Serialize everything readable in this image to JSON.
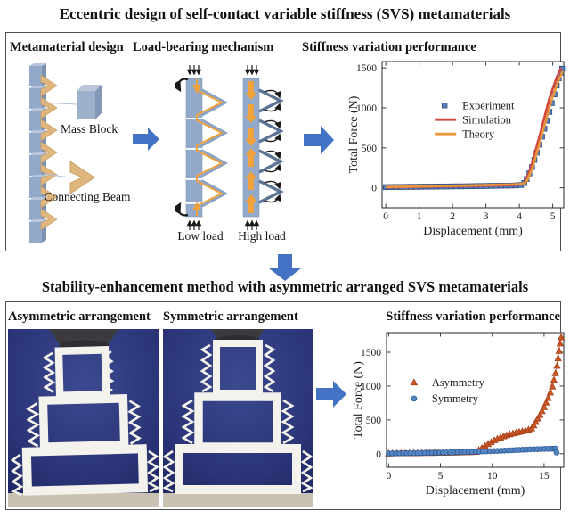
{
  "top": {
    "title": "Eccentric design of self-contact variable stiffness (SVS) metamaterials",
    "design": {
      "header": "Metamaterial design",
      "mass_block": "Mass Block",
      "connecting_beam": "Connecting Beam"
    },
    "mechanism": {
      "header": "Load-bearing mechanism",
      "low": "Low load",
      "high": "High load"
    },
    "performance": {
      "header": "Stiffness variation performance"
    }
  },
  "bottom": {
    "title": "Stability-enhancement method with asymmetric arranged SVS metamaterials",
    "asym_header": "Asymmetric arrangement",
    "sym_header": "Symmetric arrangement",
    "performance_header": "Stiffness variation performance"
  },
  "colors": {
    "flow_arrow_blue": "#4472c4",
    "block_blue": "#92a9c9",
    "beam_tan": "#dfb77e",
    "mechanism_orange": "#f0a23c",
    "experiment_blue": "#5b7fc0",
    "simulation_red": "#d4473c",
    "theory_orange": "#e9963b",
    "asymmetry_orange": "#cc5527",
    "symmetry_blue": "#5585c5",
    "photo_background_navy": "#2b3578"
  },
  "chart_data": [
    {
      "type": "scatter",
      "title": "",
      "xlabel": "Displacement (mm)",
      "ylabel": "Total Force (N)",
      "xlim": [
        -0.11,
        5.33
      ],
      "ylim": [
        -250,
        1580
      ],
      "xticks": [
        0,
        1,
        2,
        3,
        4,
        5
      ],
      "yticks": [
        0,
        500,
        1000,
        1500
      ],
      "grid": false,
      "legend": {
        "fx": 0.29,
        "fy": 0.3,
        "rh": 16
      },
      "series": [
        {
          "name": "Experiment",
          "marker": "square",
          "color": "#5b7fc0",
          "edge": "#2c4a7c",
          "x": [
            0,
            0.15,
            0.3,
            0.45,
            0.6,
            0.75,
            0.9,
            1.05,
            1.2,
            1.35,
            1.5,
            1.65,
            1.8,
            1.95,
            2.1,
            2.25,
            2.4,
            2.55,
            2.7,
            2.85,
            3.0,
            3.15,
            3.3,
            3.45,
            3.6,
            3.75,
            3.9,
            4.05,
            4.15,
            4.22,
            4.3,
            4.38,
            4.45,
            4.52,
            4.6,
            4.68,
            4.75,
            4.82,
            4.9,
            4.97,
            5.05,
            5.12,
            5.18,
            5.24,
            5.28
          ],
          "y": [
            8,
            9,
            10,
            10,
            11,
            12,
            12,
            13,
            14,
            14,
            15,
            16,
            16,
            17,
            18,
            18,
            19,
            20,
            21,
            22,
            23,
            24,
            25,
            26,
            27,
            28,
            30,
            35,
            60,
            110,
            180,
            260,
            350,
            440,
            540,
            640,
            740,
            840,
            950,
            1060,
            1170,
            1280,
            1370,
            1440,
            1490
          ]
        },
        {
          "name": "Simulation",
          "line": true,
          "width": 2.6,
          "color": "#d4473c",
          "x": [
            0,
            0.5,
            1,
            1.5,
            2,
            2.5,
            3,
            3.5,
            3.9,
            4.1,
            4.2,
            4.35,
            4.6,
            4.9,
            5.1,
            5.25
          ],
          "y": [
            6,
            9,
            12,
            15,
            19,
            23,
            27,
            31,
            36,
            45,
            90,
            260,
            640,
            1120,
            1360,
            1500
          ]
        },
        {
          "name": "Theory",
          "line": true,
          "width": 2.6,
          "color": "#e9963b",
          "x": [
            0,
            0.5,
            1,
            1.5,
            2,
            2.5,
            3,
            3.5,
            3.95,
            4.15,
            4.25,
            4.4,
            4.65,
            4.95,
            5.15,
            5.3
          ],
          "y": [
            10,
            13,
            17,
            21,
            25,
            30,
            34,
            39,
            45,
            55,
            100,
            260,
            620,
            1080,
            1320,
            1460
          ]
        }
      ]
    },
    {
      "type": "scatter",
      "title": "",
      "xlabel": "Displacement (mm)",
      "ylabel": "Total Force (N)",
      "xlim": [
        -0.2,
        16.9
      ],
      "ylim": [
        -200,
        1790
      ],
      "xticks": [
        0,
        5,
        10,
        15
      ],
      "yticks": [
        0,
        500,
        1000,
        1500
      ],
      "grid": false,
      "legend": {
        "fx": 0.1,
        "fy": 0.37,
        "rh": 18
      },
      "series": [
        {
          "name": "Asymmetry",
          "marker": "triangle",
          "color": "#cc5527",
          "edge": "#9e3c12",
          "line": true,
          "lineColor": "#e59a85",
          "width": 1.1,
          "x": [
            0,
            0.4,
            0.8,
            1.2,
            1.6,
            2.0,
            2.4,
            2.8,
            3.2,
            3.6,
            4.0,
            4.4,
            4.8,
            5.2,
            5.6,
            6.0,
            6.4,
            6.8,
            7.2,
            7.6,
            8.0,
            8.4,
            8.7,
            9.0,
            9.3,
            9.6,
            9.9,
            10.2,
            10.5,
            10.8,
            11.1,
            11.4,
            11.7,
            12.0,
            12.3,
            12.6,
            12.9,
            13.2,
            13.5,
            13.8,
            14.0,
            14.2,
            14.4,
            14.6,
            14.8,
            15.0,
            15.2,
            15.4,
            15.6,
            15.8,
            15.95,
            16.1,
            16.25,
            16.35,
            16.45,
            16.55,
            16.65
          ],
          "y": [
            5,
            6,
            7,
            8,
            8,
            9,
            10,
            10,
            11,
            12,
            12,
            13,
            14,
            15,
            16,
            17,
            18,
            19,
            20,
            22,
            24,
            28,
            55,
            85,
            115,
            145,
            172,
            198,
            220,
            240,
            258,
            274,
            288,
            300,
            312,
            322,
            332,
            342,
            355,
            375,
            420,
            470,
            520,
            575,
            630,
            690,
            755,
            825,
            905,
            995,
            1090,
            1190,
            1300,
            1410,
            1520,
            1630,
            1720
          ]
        },
        {
          "name": "Symmetry",
          "marker": "circle",
          "color": "#5585c5",
          "edge": "#2d5a94",
          "x": [
            0,
            0.35,
            0.7,
            1.05,
            1.4,
            1.75,
            2.1,
            2.45,
            2.8,
            3.15,
            3.5,
            3.85,
            4.2,
            4.55,
            4.9,
            5.25,
            5.6,
            5.95,
            6.3,
            6.65,
            7.0,
            7.35,
            7.7,
            8.05,
            8.4,
            8.75,
            9.1,
            9.45,
            9.8,
            10.15,
            10.5,
            10.85,
            11.2,
            11.55,
            11.9,
            12.25,
            12.6,
            12.95,
            13.3,
            13.65,
            14.0,
            14.35,
            14.7,
            15.05,
            15.4,
            15.75,
            16.0,
            16.1,
            16.2
          ],
          "y": [
            4,
            5,
            6,
            6,
            7,
            8,
            9,
            10,
            11,
            12,
            13,
            14,
            15,
            16,
            17,
            18,
            19,
            20,
            21,
            22,
            24,
            25,
            27,
            28,
            30,
            32,
            34,
            36,
            38,
            40,
            42,
            44,
            47,
            49,
            52,
            54,
            57,
            59,
            62,
            64,
            66,
            68,
            70,
            72,
            73,
            74,
            75,
            76,
            18
          ]
        }
      ]
    }
  ]
}
